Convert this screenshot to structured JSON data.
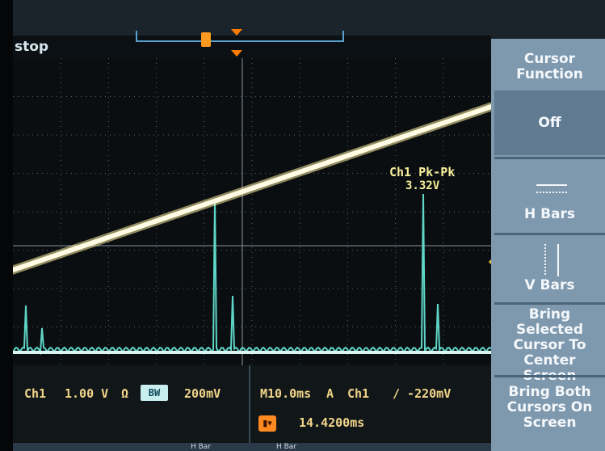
{
  "status": {
    "mode": "stop"
  },
  "markers": {
    "trigger_position": "T"
  },
  "measurement": {
    "label": "Ch1 Pk-Pk",
    "value": "3.32V"
  },
  "info_bar": {
    "channel": "Ch1",
    "scale": "1.00 V",
    "coupling_icon": "Ω",
    "bandwidth_badge": "BW",
    "offset": "200mV",
    "timebase": "M10.0ms",
    "trigger_mode": "A",
    "trigger_source": "Ch1",
    "trigger_level": "∕ -220mV",
    "cursor_icon": "▮▾",
    "cursor_delta": "14.4200ms"
  },
  "menu": {
    "title": "Cursor Function",
    "items": [
      {
        "label": "Off"
      },
      {
        "label": "H Bars",
        "icon": "h-bars-icon"
      },
      {
        "label": "V Bars",
        "icon": "v-bars-icon"
      },
      {
        "label": "Bring Selected Cursor To Center Screen"
      },
      {
        "label": "Bring Both Cursors On Screen"
      }
    ]
  },
  "bottom_tabs": [
    "H Bar",
    "H Bar"
  ],
  "colors": {
    "ch1_trace": "#fff7c8",
    "ch2_trace": "#5fd6c8",
    "readout": "#f2d58a",
    "menu_bg": "#7e98ae",
    "marker": "#ff7a00"
  }
}
